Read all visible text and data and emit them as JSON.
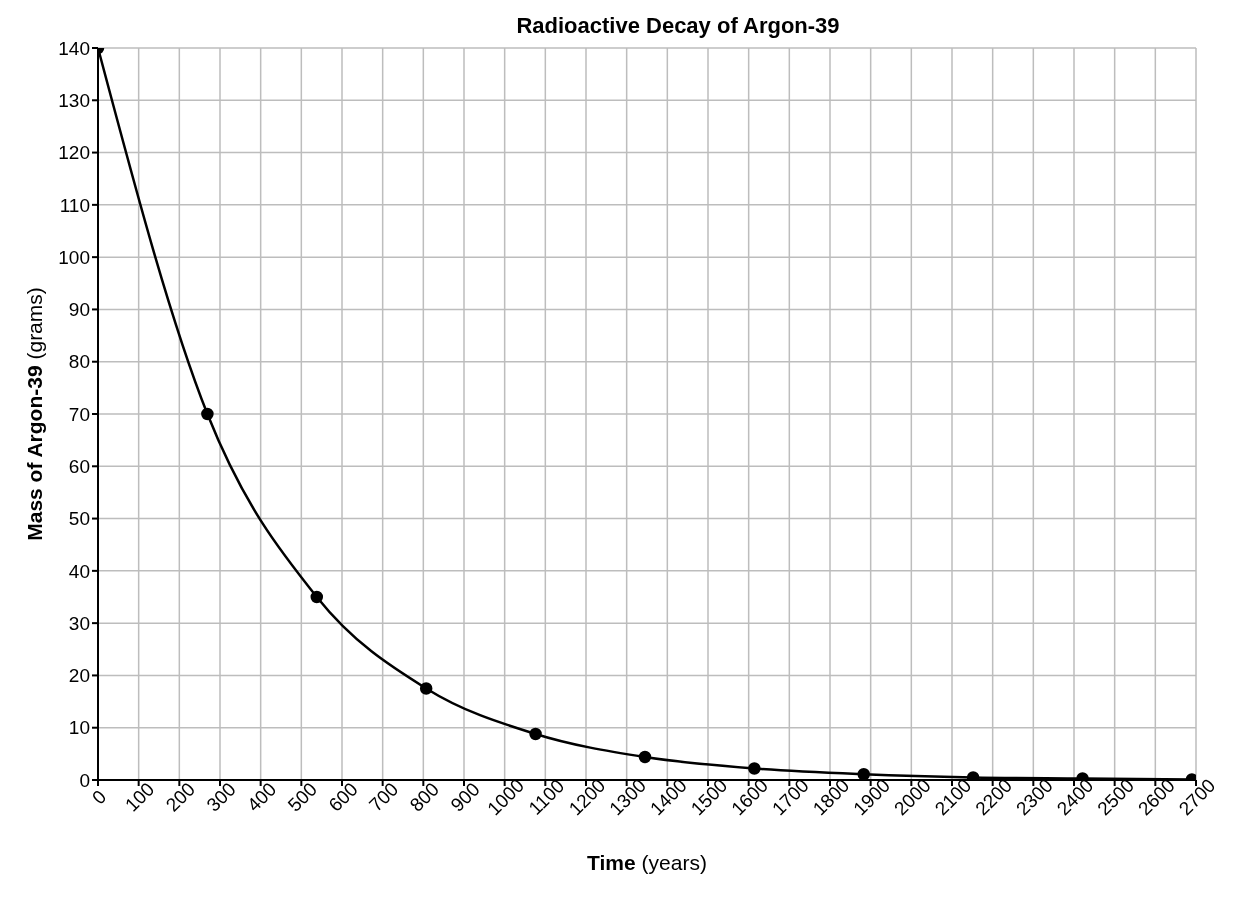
{
  "chart_data": {
    "type": "line",
    "title": "Radioactive Decay of Argon-39",
    "xlabel": "Time (years)",
    "ylabel": "Mass of Argon-39 (grams)",
    "x": [
      0,
      269,
      538,
      807,
      1076,
      1345,
      1614,
      1883,
      2152,
      2421,
      2690
    ],
    "series": [
      {
        "color": "#000000",
        "values": [
          140,
          70,
          35,
          17.5,
          8.8,
          4.4,
          2.2,
          1.1,
          0.5,
          0.3,
          0.1
        ]
      }
    ],
    "xlim": [
      0,
      2700
    ],
    "xticks": [
      0,
      100,
      200,
      300,
      400,
      500,
      600,
      700,
      800,
      900,
      1000,
      1100,
      1200,
      1300,
      1400,
      1500,
      1600,
      1700,
      1800,
      1900,
      2000,
      2100,
      2200,
      2300,
      2400,
      2500,
      2600,
      2700
    ],
    "ylim": [
      0,
      140
    ],
    "yticks": [
      0,
      10,
      20,
      30,
      40,
      50,
      60,
      70,
      80,
      90,
      100,
      110,
      120,
      130,
      140
    ],
    "grid": true,
    "marker": "circle",
    "line_style": "solid"
  }
}
